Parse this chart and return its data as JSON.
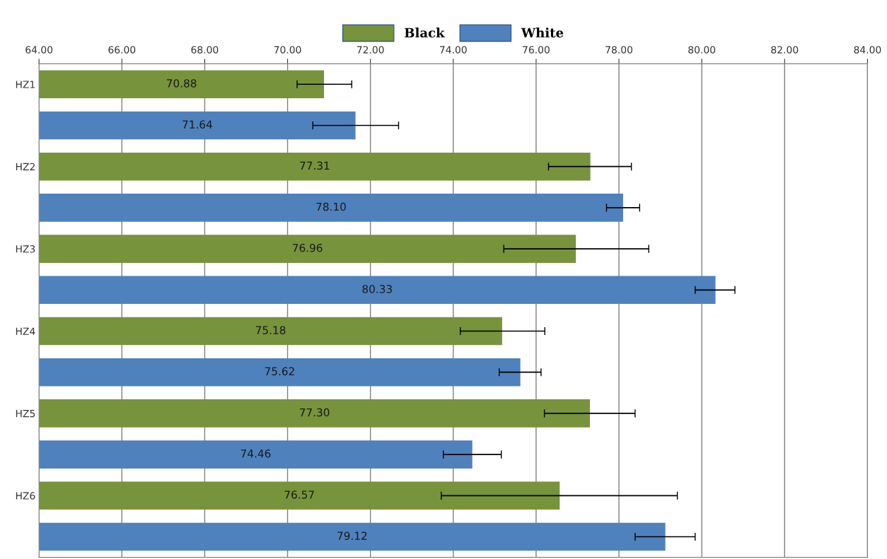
{
  "chart_data": {
    "type": "bar",
    "orientation": "horizontal",
    "categories": [
      "HZ1",
      null,
      "HZ2",
      null,
      "HZ3",
      null,
      "HZ4",
      null,
      "HZ5",
      null,
      "HZ6",
      null
    ],
    "series": [
      {
        "name": "Black",
        "color": "#77933c",
        "values": [
          70.88,
          null,
          77.31,
          null,
          76.96,
          null,
          75.18,
          null,
          77.3,
          null,
          76.57,
          null
        ],
        "value_labels": [
          "70.88",
          null,
          "77.31",
          null,
          "76.96",
          null,
          "75.18",
          null,
          "77.30",
          null,
          "76.57",
          null
        ],
        "errors": [
          [
            70.23,
            71.55
          ],
          null,
          [
            76.3,
            78.3
          ],
          null,
          [
            75.22,
            78.72
          ],
          null,
          [
            74.17,
            76.21
          ],
          null,
          [
            76.2,
            78.39
          ],
          null,
          [
            73.71,
            79.41
          ],
          null
        ]
      },
      {
        "name": "White",
        "color": "#4f81bd",
        "values": [
          null,
          71.64,
          null,
          78.1,
          null,
          80.33,
          null,
          75.62,
          null,
          74.46,
          null,
          79.12
        ],
        "value_labels": [
          null,
          "71.64",
          null,
          "78.10",
          null,
          "80.33",
          null,
          "75.62",
          null,
          "74.46",
          null,
          "79.12"
        ],
        "errors": [
          null,
          [
            70.61,
            72.68
          ],
          null,
          [
            77.7,
            78.5
          ],
          null,
          [
            79.84,
            80.8
          ],
          null,
          [
            75.11,
            76.12
          ],
          null,
          [
            73.76,
            75.16
          ],
          null,
          [
            78.39,
            79.84
          ]
        ]
      }
    ],
    "xlim": [
      64,
      84
    ],
    "xticks": [
      {
        "value": 64,
        "label": "64.00"
      },
      {
        "value": 66,
        "label": "66.00"
      },
      {
        "value": 68,
        "label": "68.00"
      },
      {
        "value": 70,
        "label": "70.00"
      },
      {
        "value": 72,
        "label": "72.00"
      },
      {
        "value": 74,
        "label": "74.00"
      },
      {
        "value": 76,
        "label": "76.00"
      },
      {
        "value": 78,
        "label": "78.00"
      },
      {
        "value": 80,
        "label": "80.00"
      },
      {
        "value": 82,
        "label": "82.00"
      },
      {
        "value": 84,
        "label": "84.00"
      }
    ],
    "grid": "x",
    "legend": "top"
  }
}
